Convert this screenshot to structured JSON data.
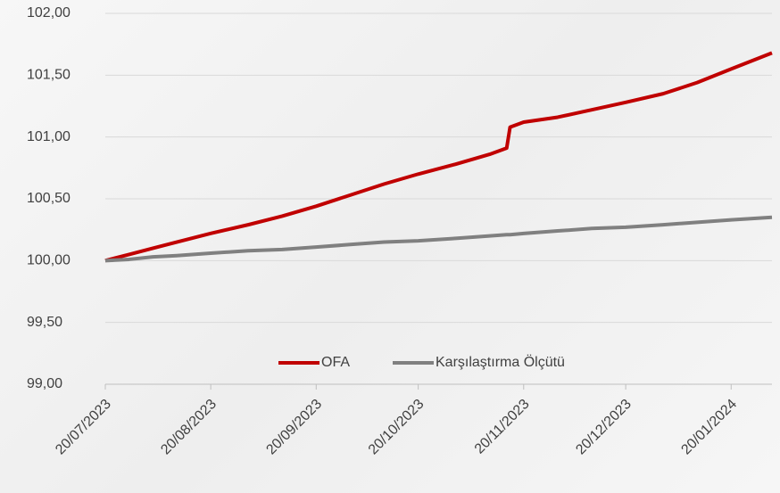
{
  "chart_data": {
    "type": "line",
    "x": [
      "2023-07-20",
      "2023-07-27",
      "2023-08-03",
      "2023-08-10",
      "2023-08-20",
      "2023-08-31",
      "2023-09-10",
      "2023-09-20",
      "2023-09-30",
      "2023-10-10",
      "2023-10-20",
      "2023-10-31",
      "2023-11-10",
      "2023-11-15",
      "2023-11-16",
      "2023-11-20",
      "2023-11-30",
      "2023-12-10",
      "2023-12-20",
      "2023-12-31",
      "2024-01-10",
      "2024-01-20",
      "2024-02-01"
    ],
    "series": [
      {
        "name": "OFA",
        "color": "#c00000",
        "values": [
          100.0,
          100.05,
          100.1,
          100.15,
          100.22,
          100.29,
          100.36,
          100.44,
          100.53,
          100.62,
          100.7,
          100.78,
          100.86,
          100.91,
          101.08,
          101.12,
          101.16,
          101.22,
          101.28,
          101.35,
          101.44,
          101.55,
          101.68
        ]
      },
      {
        "name": "Karşılaştırma Ölçütü",
        "color": "#808080",
        "values": [
          100.0,
          100.01,
          100.03,
          100.04,
          100.06,
          100.08,
          100.09,
          100.11,
          100.13,
          100.15,
          100.16,
          100.18,
          100.2,
          100.21,
          100.21,
          100.22,
          100.24,
          100.26,
          100.27,
          100.29,
          100.31,
          100.33,
          100.35
        ]
      }
    ],
    "xlim": [
      "2023-07-20",
      "2024-02-01"
    ],
    "xticks": [
      {
        "value": "2023-07-20",
        "label": "20/07/2023"
      },
      {
        "value": "2023-08-20",
        "label": "20/08/2023"
      },
      {
        "value": "2023-09-20",
        "label": "20/09/2023"
      },
      {
        "value": "2023-10-20",
        "label": "20/10/2023"
      },
      {
        "value": "2023-11-20",
        "label": "20/11/2023"
      },
      {
        "value": "2023-12-20",
        "label": "20/12/2023"
      },
      {
        "value": "2024-01-20",
        "label": "20/01/2024"
      }
    ],
    "ylim": [
      99,
      102
    ],
    "yticks": [
      {
        "value": 99,
        "label": "99,00"
      },
      {
        "value": 99.5,
        "label": "99,50"
      },
      {
        "value": 100,
        "label": "100,00"
      },
      {
        "value": 100.5,
        "label": "100,50"
      },
      {
        "value": 101,
        "label": "101,00"
      },
      {
        "value": 101.5,
        "label": "101,50"
      },
      {
        "value": 102,
        "label": "102,00"
      }
    ],
    "grid": true,
    "legend": "bottom"
  }
}
